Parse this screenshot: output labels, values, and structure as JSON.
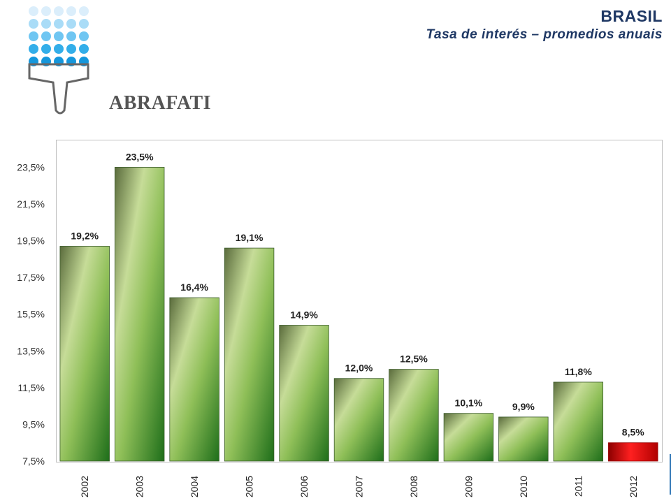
{
  "header": {
    "title": "BRASIL",
    "subtitle": "Tasa de interés – promedios anuais"
  },
  "logo": {
    "text": "ABRAFATI"
  },
  "colors": {
    "title": "#1f3864",
    "bar_green": "#4e9a2a",
    "bar_red": "#e00000",
    "accent_blue": "#2f75b5"
  },
  "chart_data": {
    "type": "bar",
    "categories": [
      "2002",
      "2003",
      "2004",
      "2005",
      "2006",
      "2007",
      "2008",
      "2009",
      "2010",
      "2011",
      "2012"
    ],
    "values": [
      19.2,
      23.5,
      16.4,
      19.1,
      14.9,
      12.0,
      12.5,
      10.1,
      9.9,
      11.8,
      8.5
    ],
    "value_labels": [
      "19,2%",
      "23,5%",
      "16,4%",
      "19,1%",
      "14,9%",
      "12,0%",
      "12,5%",
      "10,1%",
      "9,9%",
      "11,8%",
      "8,5%"
    ],
    "highlight_last": true,
    "yticks": [
      "7,5%",
      "9,5%",
      "11,5%",
      "13,5%",
      "15,5%",
      "17,5%",
      "19,5%",
      "21,5%",
      "23,5%"
    ],
    "ytick_values": [
      7.5,
      9.5,
      11.5,
      13.5,
      15.5,
      17.5,
      19.5,
      21.5,
      23.5
    ],
    "ylim": [
      7.5,
      25.0
    ],
    "grid": false,
    "legend": "none"
  }
}
